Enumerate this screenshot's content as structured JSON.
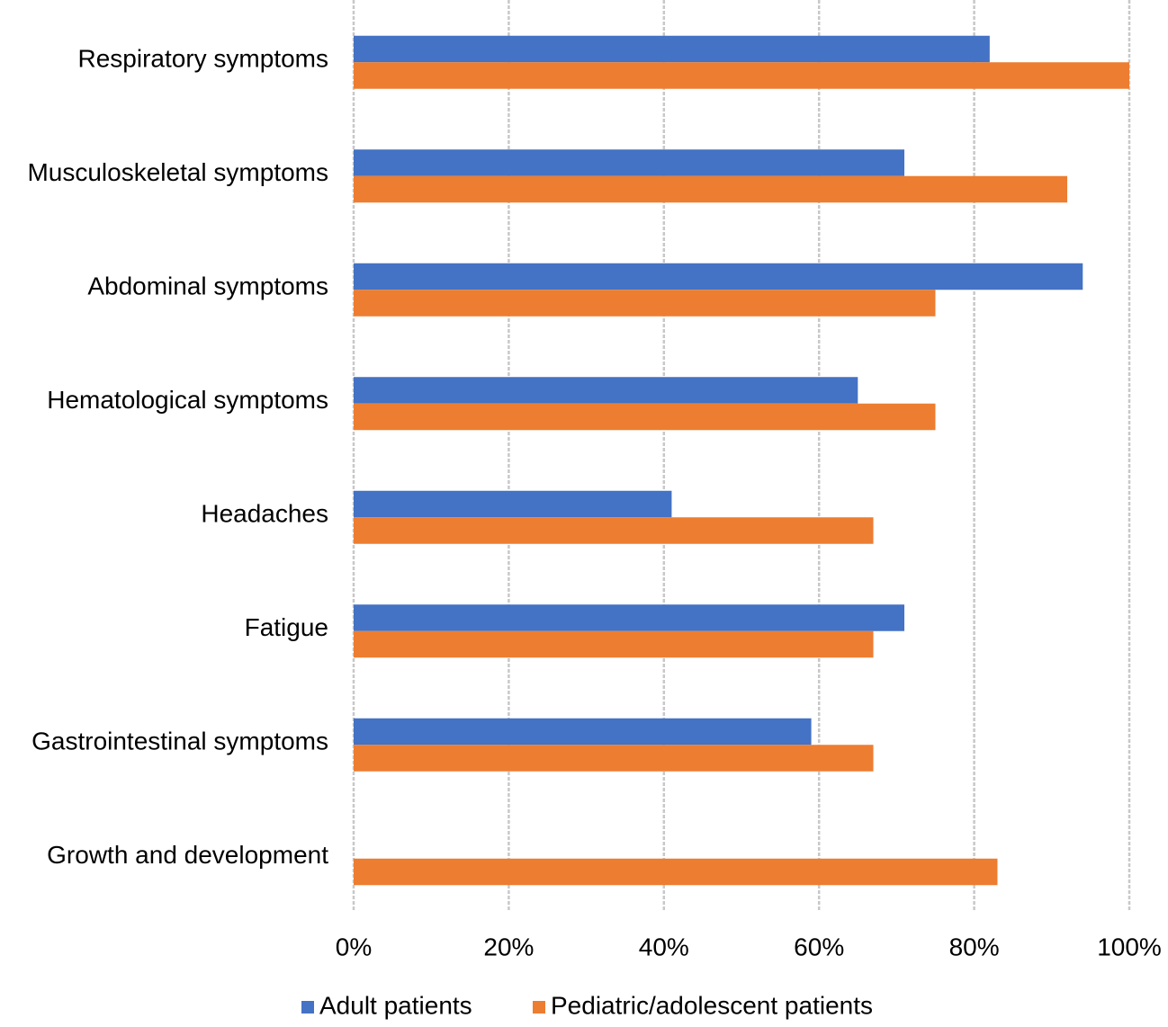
{
  "chart_data": {
    "type": "hbar",
    "categories": [
      "Respiratory symptoms",
      "Musculoskeletal symptoms",
      "Abdominal symptoms",
      "Hematological symptoms",
      "Headaches",
      "Fatigue",
      "Gastrointestinal symptoms",
      "Growth and development"
    ],
    "series": [
      {
        "name": "Adult patients",
        "color": "#4472c4",
        "values": [
          82,
          71,
          94,
          65,
          41,
          71,
          59,
          null
        ]
      },
      {
        "name": "Pediatric/adolescent patients",
        "color": "#ed7d31",
        "values": [
          100,
          92,
          75,
          75,
          67,
          67,
          67,
          83
        ]
      }
    ],
    "xlim": [
      0,
      100
    ],
    "xticks": [
      {
        "value": 0,
        "label": "0%"
      },
      {
        "value": 20,
        "label": "20%"
      },
      {
        "value": 40,
        "label": "40%"
      },
      {
        "value": 60,
        "label": "60%"
      },
      {
        "value": 80,
        "label": "80%"
      },
      {
        "value": 100,
        "label": "100%"
      }
    ],
    "grid": true,
    "legend": "bottom"
  }
}
